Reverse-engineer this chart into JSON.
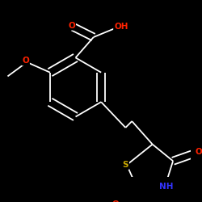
{
  "bg_color": "#000000",
  "bond_color": "#ffffff",
  "bond_lw": 1.3,
  "dbo": 0.018,
  "atom_colors": {
    "O": "#ff2200",
    "S": "#ccaa00",
    "N": "#3333ff",
    "C": "#ffffff",
    "H": "#ffffff"
  },
  "font_size_atom": 7.5,
  "figsize": [
    2.5,
    2.5
  ],
  "dpi": 100
}
